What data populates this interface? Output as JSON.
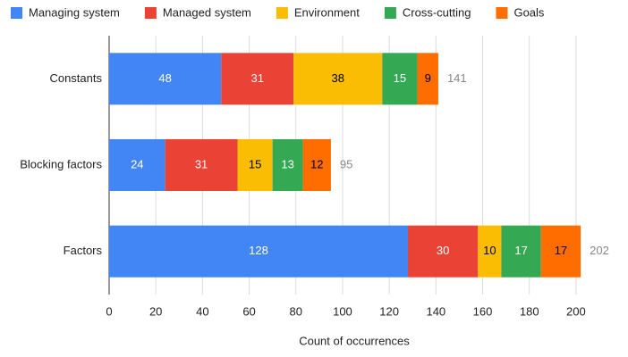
{
  "chart_data": {
    "type": "stacked_bar_horizontal",
    "categories": [
      "Constants",
      "Blocking factors",
      "Factors"
    ],
    "series": [
      {
        "name": "Managing system",
        "color": "#4285f4",
        "label_color": "#ffffff",
        "values": [
          48,
          24,
          128
        ]
      },
      {
        "name": "Managed system",
        "color": "#ea4335",
        "label_color": "#ffffff",
        "values": [
          31,
          31,
          30
        ]
      },
      {
        "name": "Environment",
        "color": "#fbbc04",
        "label_color": "#000000",
        "values": [
          38,
          15,
          10
        ]
      },
      {
        "name": "Cross-cutting",
        "color": "#34a853",
        "label_color": "#ffffff",
        "values": [
          15,
          13,
          17
        ]
      },
      {
        "name": "Goals",
        "color": "#ff6d01",
        "label_color": "#000000",
        "values": [
          9,
          12,
          17
        ]
      }
    ],
    "totals": [
      141,
      95,
      202
    ],
    "xlabel": "Count of occurrences",
    "xlim": [
      0,
      210
    ],
    "xticks": [
      0,
      20,
      40,
      60,
      80,
      100,
      120,
      140,
      160,
      180,
      200
    ],
    "grid": true,
    "legend": "top"
  }
}
